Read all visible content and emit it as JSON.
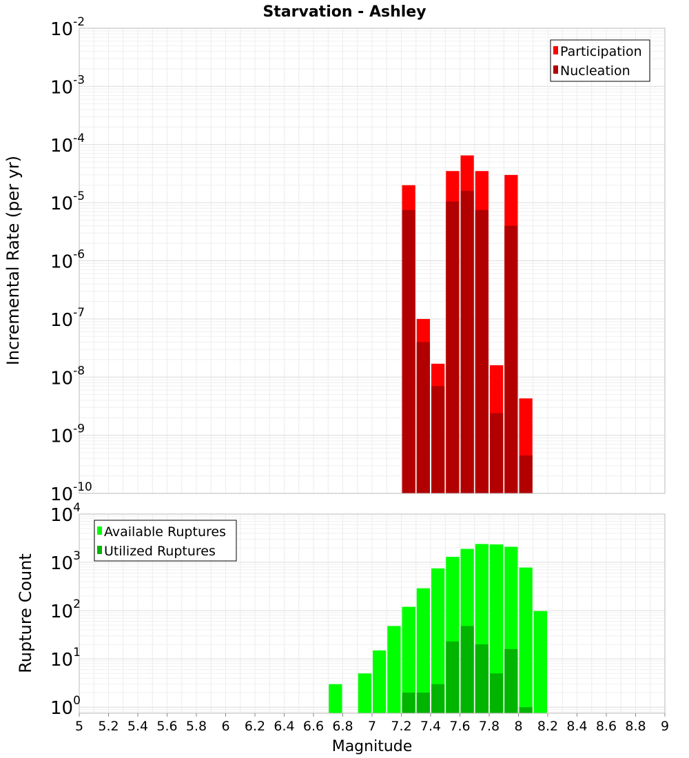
{
  "page_title": "Starvation - Ashley",
  "x_axis": {
    "label": "Magnitude",
    "range": [
      5,
      9
    ],
    "ticks": [
      "5",
      "5.2",
      "5.4",
      "5.6",
      "5.8",
      "6",
      "6.2",
      "6.4",
      "6.6",
      "6.8",
      "7",
      "7.2",
      "7.4",
      "7.6",
      "7.8",
      "8",
      "8.2",
      "8.4",
      "8.6",
      "8.8",
      "9"
    ]
  },
  "chart_data": [
    {
      "type": "bar",
      "title": "Starvation - Ashley",
      "xlabel": "Magnitude",
      "ylabel": "Incremental Rate (per yr)",
      "yscale": "log",
      "ylim": [
        1e-10,
        0.01
      ],
      "xlim": [
        5,
        9
      ],
      "y_tick_exponents": [
        "-10",
        "-9",
        "-8",
        "-7",
        "-6",
        "-5",
        "-4",
        "-3",
        "-2"
      ],
      "grid": true,
      "legend": "top-right",
      "overlay": true,
      "series": [
        {
          "name": "Participation",
          "color": "#ff0000",
          "x": [
            7.25,
            7.35,
            7.45,
            7.55,
            7.65,
            7.75,
            7.85,
            7.95,
            8.05
          ],
          "values": [
            2e-05,
            1e-07,
            1.7e-08,
            3.5e-05,
            6.5e-05,
            3.5e-05,
            1.6e-08,
            3e-05,
            4.3e-09
          ]
        },
        {
          "name": "Nucleation",
          "color": "#b20000",
          "x": [
            7.25,
            7.35,
            7.45,
            7.55,
            7.65,
            7.75,
            7.85,
            7.95,
            8.05
          ],
          "values": [
            7.5e-06,
            4e-08,
            7e-09,
            1.05e-05,
            1.6e-05,
            7.5e-06,
            2.4e-09,
            4e-06,
            4.5e-10
          ]
        }
      ]
    },
    {
      "type": "bar",
      "xlabel": "Magnitude",
      "ylabel": "Rupture Count",
      "yscale": "log",
      "ylim": [
        0.75,
        10000
      ],
      "xlim": [
        5,
        9
      ],
      "y_tick_exponents": [
        "0",
        "1",
        "2",
        "3",
        "4"
      ],
      "grid": true,
      "legend": "top-left",
      "overlay": true,
      "series": [
        {
          "name": "Available Ruptures",
          "color": "#00ff00",
          "x": [
            6.75,
            6.95,
            7.05,
            7.15,
            7.25,
            7.35,
            7.45,
            7.55,
            7.65,
            7.75,
            7.85,
            7.95,
            8.05,
            8.15
          ],
          "values": [
            3,
            5,
            15,
            48,
            120,
            290,
            750,
            1300,
            1900,
            2400,
            2350,
            2100,
            780,
            98
          ]
        },
        {
          "name": "Utilized Ruptures",
          "color": "#00b400",
          "x": [
            7.25,
            7.35,
            7.45,
            7.55,
            7.65,
            7.75,
            7.85,
            7.95,
            8.05
          ],
          "values": [
            2,
            2,
            3,
            23,
            48,
            20,
            5,
            16,
            1
          ]
        }
      ]
    }
  ]
}
